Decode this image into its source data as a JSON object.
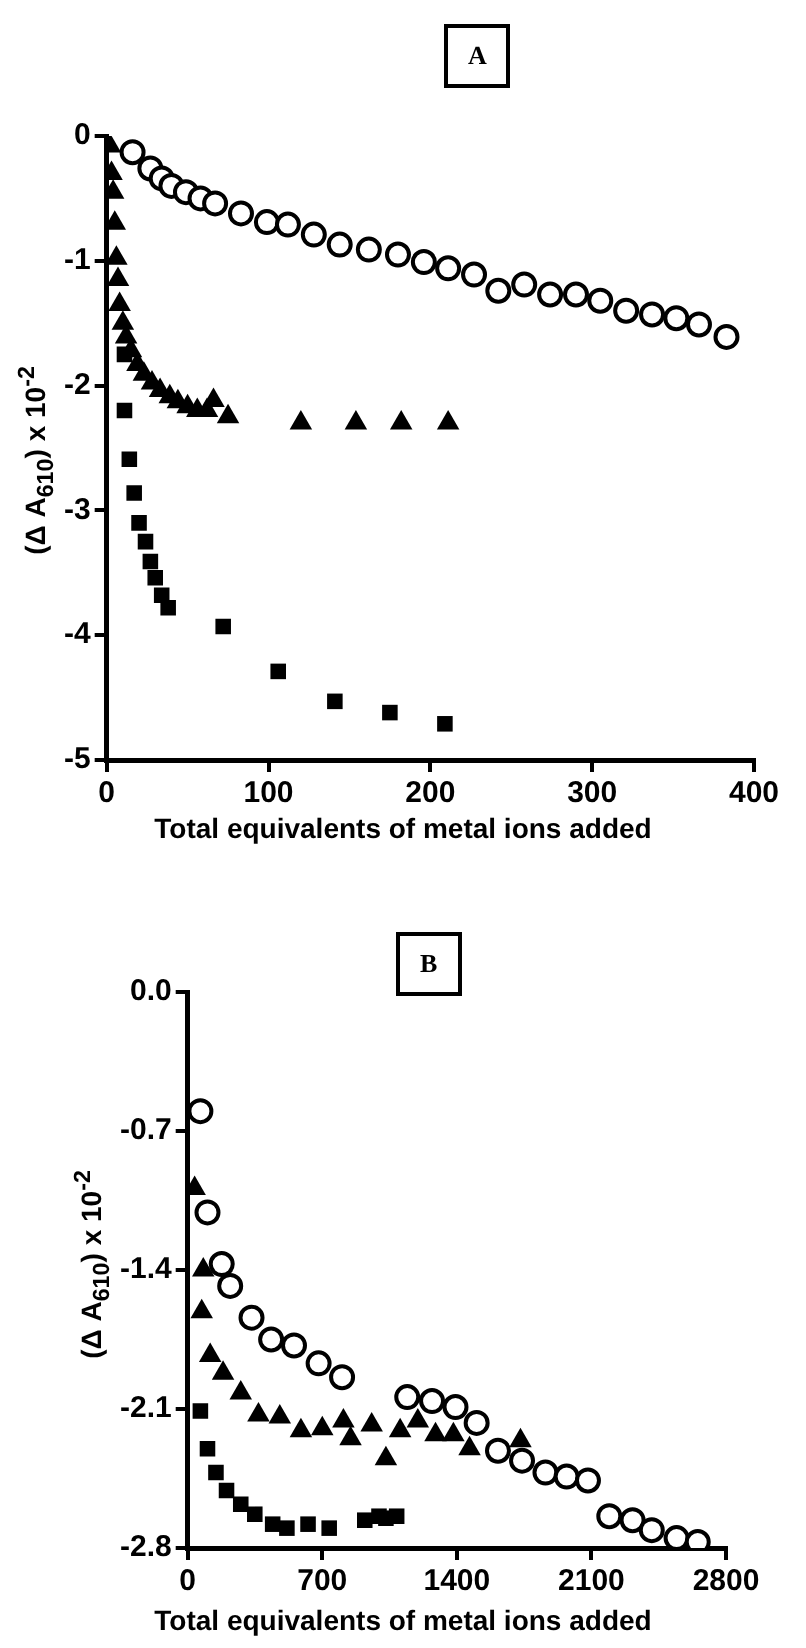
{
  "chart_data": [
    {
      "type": "scatter",
      "title": "A",
      "xlabel": "Total equivalents of metal ions added",
      "ylabel": "(Δ A$_{610}$) x 10$^{-2}$",
      "xlim": [
        0,
        400
      ],
      "xticks": [
        0,
        100,
        200,
        300,
        400
      ],
      "ylim": [
        -5,
        0
      ],
      "yticks": [
        0,
        -1,
        -2,
        -3,
        -4,
        -5
      ],
      "grid": false,
      "legend": false,
      "series": [
        {
          "color": "#000000",
          "marker": "circle",
          "x": [
            16,
            27,
            34,
            40,
            49,
            58,
            67,
            83,
            99,
            112,
            128,
            144,
            162,
            180,
            196,
            211,
            227,
            242,
            258,
            274,
            290,
            305,
            321,
            337,
            352,
            366,
            383
          ],
          "values": [
            -0.13,
            -0.26,
            -0.34,
            -0.4,
            -0.45,
            -0.5,
            -0.54,
            -0.62,
            -0.69,
            -0.71,
            -0.79,
            -0.87,
            -0.91,
            -0.95,
            -1.01,
            -1.06,
            -1.11,
            -1.24,
            -1.19,
            -1.27,
            -1.27,
            -1.32,
            -1.4,
            -1.43,
            -1.46,
            -1.51,
            -1.61
          ]
        },
        {
          "color": "#000000",
          "marker": "triangle",
          "x": [
            2,
            3,
            4,
            5,
            6,
            7,
            8,
            10,
            12,
            15,
            19,
            23,
            28,
            33,
            39,
            44,
            50,
            56,
            62,
            66,
            71,
            75,
            120,
            154,
            182,
            211
          ],
          "values": [
            -0.08,
            -0.3,
            -0.45,
            -0.7,
            -0.98,
            -1.15,
            -1.35,
            -1.5,
            -1.61,
            -1.72,
            -1.83,
            -1.91,
            -1.98,
            -2.04,
            -2.09,
            -2.13,
            -2.17,
            -2.2,
            -2.2,
            -2.12,
            null,
            -2.25,
            -2.3,
            -2.3,
            -2.3,
            -2.3
          ]
        },
        {
          "color": "#000000",
          "marker": "square",
          "x": [
            11,
            11,
            14,
            17,
            20,
            24,
            27,
            30,
            34,
            38,
            72,
            106,
            141,
            175,
            209
          ],
          "values": [
            -1.75,
            -2.2,
            -2.59,
            -2.86,
            -3.1,
            -3.25,
            -3.41,
            -3.54,
            -3.68,
            -3.78,
            -3.93,
            -4.29,
            -4.53,
            -4.62,
            -4.71
          ]
        }
      ]
    },
    {
      "type": "scatter",
      "title": "B",
      "xlabel": "Total equivalents of metal ions added",
      "ylabel": "(Δ A$_{610}$) x 10$^{-2}$",
      "xlim": [
        0,
        2800
      ],
      "xticks": [
        0,
        700,
        1400,
        2100,
        2800
      ],
      "ylim": [
        -2.8,
        0
      ],
      "yticks": [
        {
          "value": 0,
          "label": "0.0"
        },
        -0.7,
        -1.4,
        -2.1,
        -2.8
      ],
      "grid": false,
      "legend": false,
      "series": [
        {
          "color": "#000000",
          "marker": "circle",
          "x": [
            66,
            103,
            177,
            221,
            332,
            434,
            553,
            681,
            803,
            1142,
            1271,
            1393,
            1503,
            1614,
            1739,
            1861,
            1971,
            2082,
            2193,
            2314,
            2414,
            2543,
            2653
          ],
          "values": [
            -0.6,
            -1.11,
            -1.37,
            -1.48,
            -1.64,
            -1.75,
            -1.78,
            -1.87,
            -1.94,
            -2.04,
            -2.06,
            -2.09,
            -2.17,
            -2.31,
            -2.36,
            -2.42,
            -2.44,
            -2.46,
            -2.64,
            -2.66,
            -2.71,
            -2.75,
            -2.77
          ]
        },
        {
          "color": "#000000",
          "marker": "triangle",
          "x": [
            36,
            73,
            81,
            117,
            184,
            276,
            368,
            479,
            589,
            700,
            810,
            847,
            957,
            1031,
            1105,
            1197,
            1289,
            1382,
            1466,
            1621,
            1731
          ],
          "values": [
            -0.99,
            -1.61,
            -1.4,
            -1.83,
            -1.92,
            -2.02,
            -2.13,
            -2.14,
            -2.21,
            -2.2,
            -2.16,
            -2.25,
            -2.18,
            -2.35,
            -2.21,
            -2.16,
            -2.23,
            -2.23,
            -2.3,
            null,
            -2.26
          ]
        },
        {
          "color": "#000000",
          "marker": "square",
          "x": [
            66,
            103,
            147,
            202,
            276,
            349,
            442,
            516,
            626,
            736,
            921,
            995,
            1031,
            1087
          ],
          "values": [
            -2.11,
            -2.3,
            -2.42,
            -2.51,
            -2.58,
            -2.63,
            -2.68,
            -2.7,
            -2.68,
            -2.7,
            -2.66,
            -2.64,
            -2.65,
            -2.64
          ]
        }
      ]
    }
  ]
}
